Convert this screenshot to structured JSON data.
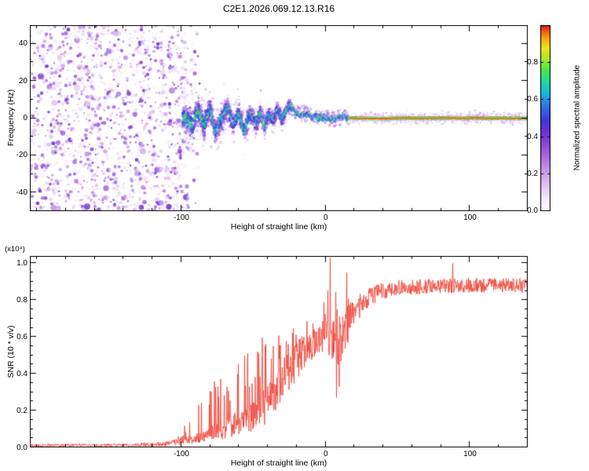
{
  "figure_title": "C2E1.2026.069.12.13.R16",
  "chart_data": [
    {
      "type": "heatmap",
      "title": "C2E1.2026.069.12.13.R16",
      "xlabel": "Height of straight line (km)",
      "ylabel": "Frequency (Hz)",
      "xlim": [
        -205,
        140
      ],
      "ylim": [
        -50,
        50
      ],
      "xticks": [
        -100,
        0,
        100
      ],
      "x_minor_step": 20,
      "yticks": [
        -40,
        -20,
        0,
        20,
        40
      ],
      "y_minor_step": 10,
      "colorbar": {
        "label": "Normalized spectral amplitude",
        "range": [
          0,
          1
        ],
        "ticks": [
          0.0,
          0.2,
          0.4,
          0.6,
          0.8
        ],
        "colormap_stops": [
          [
            0,
            "#ffffff"
          ],
          [
            0.08,
            "#f0e4f8"
          ],
          [
            0.18,
            "#d4aaee"
          ],
          [
            0.3,
            "#a866e0"
          ],
          [
            0.4,
            "#7736d4"
          ],
          [
            0.48,
            "#4433dc"
          ],
          [
            0.56,
            "#2f6fe4"
          ],
          [
            0.63,
            "#1ab4dc"
          ],
          [
            0.69,
            "#1fd8a8"
          ],
          [
            0.76,
            "#4ce44c"
          ],
          [
            0.82,
            "#aae826"
          ],
          [
            0.88,
            "#eee41e"
          ],
          [
            0.93,
            "#f5a313"
          ],
          [
            0.97,
            "#ef5a0e"
          ],
          [
            1,
            "#dc1240"
          ]
        ]
      },
      "regions": {
        "broadband_noise": {
          "x_range": [
            -205,
            -85
          ],
          "fade_start": -100,
          "amplitude_range": [
            0.05,
            0.45
          ]
        },
        "sparse_speckle": {
          "x_range": [
            -102,
            -28
          ],
          "freq_spread_hz": 20,
          "amplitude_range": [
            0.05,
            0.25
          ]
        },
        "chaotic_signal": {
          "x_range": [
            -99,
            -24
          ],
          "freq_spread_hz": [
            1.6,
            3.5
          ],
          "amplitude_range": [
            0.2,
            0.8
          ]
        },
        "converging_signal": {
          "x_range": [
            -24,
            16
          ],
          "freq_spread_hz": 1.8,
          "amplitude_range": [
            0.45,
            1.0
          ]
        },
        "locked_carrier": {
          "x_range": [
            16,
            140
          ],
          "center_hz": 0,
          "halo_hz": 3,
          "core_amplitude": 0.97
        }
      },
      "trace_center_hz": [
        [
          -100,
          -1
        ],
        [
          -96,
          2
        ],
        [
          -92,
          -4
        ],
        [
          -88,
          5
        ],
        [
          -84,
          -3
        ],
        [
          -80,
          6
        ],
        [
          -76,
          -5
        ],
        [
          -72,
          2
        ],
        [
          -68,
          7
        ],
        [
          -64,
          -3
        ],
        [
          -60,
          4
        ],
        [
          -56,
          -6
        ],
        [
          -52,
          3
        ],
        [
          -48,
          -2
        ],
        [
          -45,
          5
        ],
        [
          -42,
          -4
        ],
        [
          -39,
          2
        ],
        [
          -36,
          -2
        ],
        [
          -33,
          3
        ],
        [
          -30,
          -3
        ],
        [
          -27,
          1
        ],
        [
          -25,
          3
        ],
        [
          -23,
          4
        ],
        [
          -21,
          2
        ],
        [
          -19,
          3
        ],
        [
          -17,
          1
        ],
        [
          -15,
          2
        ],
        [
          -13,
          1
        ],
        [
          -11,
          2
        ],
        [
          -9,
          0
        ],
        [
          -7,
          1
        ],
        [
          -5,
          0
        ],
        [
          -3,
          1
        ],
        [
          -1,
          0
        ],
        [
          1,
          1
        ],
        [
          3,
          -1
        ],
        [
          5,
          1
        ],
        [
          7,
          -1
        ],
        [
          9,
          1
        ],
        [
          11,
          0
        ],
        [
          13,
          1
        ],
        [
          15,
          0
        ],
        [
          18,
          0
        ],
        [
          140,
          0
        ]
      ]
    },
    {
      "type": "line",
      "xlabel": "Height of straight line (km)",
      "ylabel": "SNR (10 * v/v)",
      "scale_annotation": "(x10⁴)",
      "line_color": "#ee3b2e",
      "xlim": [
        -205,
        140
      ],
      "ylim": [
        0,
        1.04
      ],
      "xticks": [
        -100,
        0,
        100
      ],
      "x_minor_step": 20,
      "yticks": [
        0,
        0.2,
        0.4,
        0.6,
        0.8,
        1
      ],
      "y_minor_step": 0.05,
      "envelope_keypoints": [
        [
          -205,
          0.012,
          0.008,
          0,
          0
        ],
        [
          -150,
          0.012,
          0.008,
          0,
          0
        ],
        [
          -128,
          0.014,
          0.01,
          0.02,
          0.04
        ],
        [
          -112,
          0.018,
          0.012,
          0.04,
          0.05
        ],
        [
          -104,
          0.03,
          0.018,
          0.08,
          0.08
        ],
        [
          -97,
          0.045,
          0.025,
          0.1,
          0.13
        ],
        [
          -90,
          0.05,
          0.03,
          0.12,
          0.2
        ],
        [
          -84,
          0.06,
          0.035,
          0.18,
          0.3
        ],
        [
          -78,
          0.075,
          0.04,
          0.28,
          0.46
        ],
        [
          -71,
          0.095,
          0.05,
          0.28,
          0.42
        ],
        [
          -63,
          0.115,
          0.06,
          0.3,
          0.48
        ],
        [
          -55,
          0.145,
          0.07,
          0.3,
          0.52
        ],
        [
          -47,
          0.185,
          0.09,
          0.3,
          0.57
        ],
        [
          -41,
          0.23,
          0.1,
          0.3,
          0.63
        ],
        [
          -34,
          0.29,
          0.11,
          0.26,
          0.6
        ],
        [
          -28,
          0.37,
          0.12,
          0.25,
          0.65
        ],
        [
          -21,
          0.46,
          0.11,
          0.2,
          0.68
        ],
        [
          -14,
          0.53,
          0.09,
          0.15,
          0.7
        ],
        [
          -7,
          0.57,
          0.08,
          0.1,
          0.72
        ],
        [
          -2,
          0.6,
          0.09,
          0.1,
          0.8
        ],
        [
          2,
          0.62,
          0.12,
          0.12,
          0.92
        ],
        [
          6,
          0.58,
          0.15,
          0.1,
          0.9
        ],
        [
          10,
          0.6,
          0.15,
          0.1,
          0.9
        ],
        [
          14,
          0.66,
          0.12,
          0.1,
          0.92
        ],
        [
          19,
          0.72,
          0.09,
          0.05,
          0.9
        ],
        [
          25,
          0.78,
          0.06,
          0.02,
          0.88
        ],
        [
          33,
          0.83,
          0.05,
          0,
          0
        ],
        [
          45,
          0.86,
          0.045,
          0,
          0
        ],
        [
          70,
          0.875,
          0.04,
          0.008,
          0.96
        ],
        [
          100,
          0.88,
          0.04,
          0.004,
          0.97
        ],
        [
          140,
          0.88,
          0.04,
          0,
          0
        ]
      ],
      "singular_peaks": [
        [
          3.2,
          1.03
        ],
        [
          14.5,
          0.95
        ],
        [
          88,
          1.0
        ]
      ],
      "singular_dips": [
        [
          7.5,
          0.27
        ],
        [
          9.5,
          0.33
        ]
      ]
    }
  ]
}
